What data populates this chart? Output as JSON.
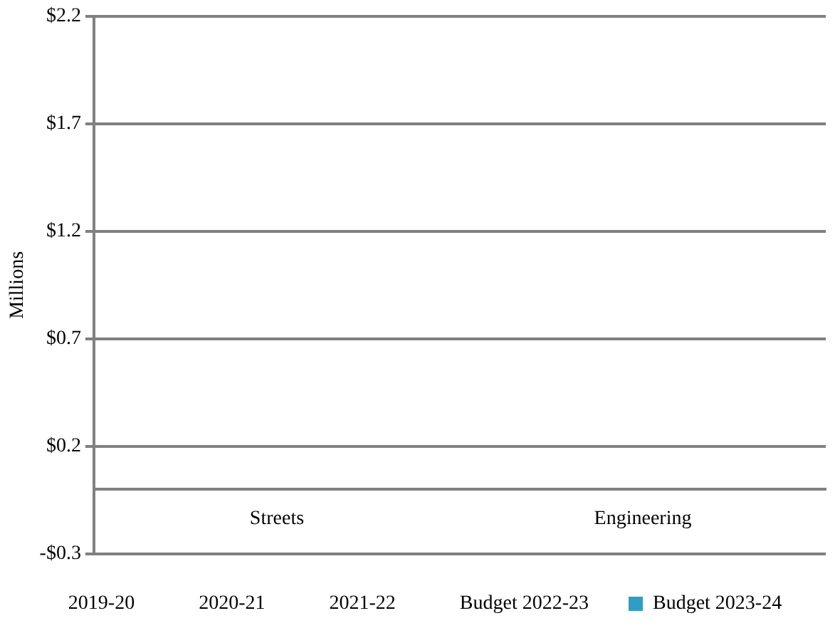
{
  "chart_data": {
    "type": "bar",
    "ylabel": "Millions",
    "categories": [
      "Streets",
      "Engineering"
    ],
    "series": [
      {
        "name": "2019-20",
        "values": [
          0,
          0
        ]
      },
      {
        "name": "2020-21",
        "values": [
          0,
          0
        ]
      },
      {
        "name": "2021-22",
        "values": [
          0,
          0
        ]
      },
      {
        "name": "Budget 2022-23",
        "values": [
          0,
          0
        ]
      },
      {
        "name": "Budget 2023-24",
        "color": "#2e9ec4",
        "values": [
          0,
          0
        ]
      }
    ],
    "ylim": [
      -0.3,
      2.2
    ],
    "yticks": [
      {
        "value": -0.3,
        "label": "-$0.3"
      },
      {
        "value": 0.2,
        "label": "$0.2"
      },
      {
        "value": 0.7,
        "label": "$0.7"
      },
      {
        "value": 1.2,
        "label": "$1.2"
      },
      {
        "value": 1.7,
        "label": "$1.7"
      },
      {
        "value": 2.2,
        "label": "$2.2"
      }
    ],
    "grid": "y",
    "legend": "bottom"
  }
}
